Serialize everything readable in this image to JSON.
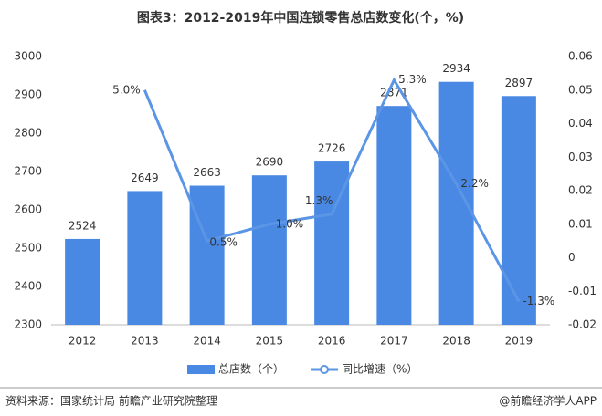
{
  "chart_data": {
    "type": "bar",
    "title": "图表3：2012-2019年中国连锁零售总店数变化(个，%)",
    "categories": [
      "2012",
      "2013",
      "2014",
      "2015",
      "2016",
      "2017",
      "2018",
      "2019"
    ],
    "series": [
      {
        "name": "总店数（个）",
        "type": "bar",
        "color": "#4a89e3",
        "values": [
          2524,
          2649,
          2663,
          2690,
          2726,
          2871,
          2934,
          2897
        ]
      },
      {
        "name": "同比增速（%）",
        "type": "line",
        "axis": "y2",
        "color": "#5b95e6",
        "values": [
          null,
          0.05,
          0.005,
          0.01,
          0.013,
          0.053,
          0.022,
          -0.013
        ],
        "value_labels": [
          null,
          "5.0%",
          "0.5%",
          "1.0%",
          "1.3%",
          "5.3%",
          "2.2%",
          "-1.3%"
        ]
      }
    ],
    "ylim": [
      2300,
      3000
    ],
    "yticks": [
      2300,
      2400,
      2500,
      2600,
      2700,
      2800,
      2900,
      3000
    ],
    "y2lim": [
      -0.02,
      0.06
    ],
    "y2ticks": [
      -0.02,
      -0.01,
      0,
      0.01,
      0.02,
      0.03,
      0.04,
      0.05,
      0.06
    ],
    "grid": false,
    "legend": "bottom"
  },
  "footer": {
    "source": "资料来源：国家统计局 前瞻产业研究院整理",
    "brand": "@前瞻经济学人APP"
  }
}
